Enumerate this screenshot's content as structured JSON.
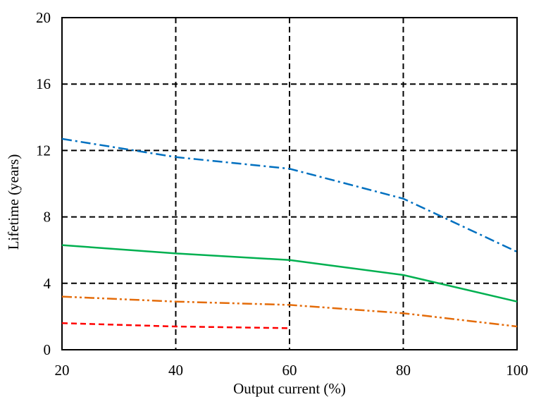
{
  "chart_data": {
    "type": "line",
    "title": "",
    "xlabel": "Output current (%)",
    "ylabel": "Lifetime (years)",
    "xlim": [
      20,
      100
    ],
    "ylim": [
      0,
      20
    ],
    "x_ticks": [
      "20",
      "40",
      "60",
      "80",
      "100"
    ],
    "y_ticks": [
      "0",
      "4",
      "8",
      "12",
      "16",
      "20"
    ],
    "grid": true,
    "legend": "none",
    "series": [
      {
        "color": "#0070C0",
        "style": "dash-dot",
        "x": [
          20,
          40,
          60,
          80,
          100
        ],
        "values": [
          12.7,
          11.6,
          10.9,
          9.1,
          5.9
        ]
      },
      {
        "color": "#00B050",
        "style": "solid",
        "x": [
          20,
          40,
          60,
          80,
          100
        ],
        "values": [
          6.3,
          5.8,
          5.4,
          4.5,
          2.9
        ]
      },
      {
        "color": "#E46C0A",
        "style": "dash-dot-dot",
        "x": [
          20,
          40,
          60,
          80,
          100
        ],
        "values": [
          3.2,
          2.9,
          2.7,
          2.2,
          1.4
        ]
      },
      {
        "color": "#FF0000",
        "style": "dashed",
        "x": [
          20,
          40,
          60
        ],
        "values": [
          1.6,
          1.4,
          1.3
        ]
      }
    ]
  }
}
